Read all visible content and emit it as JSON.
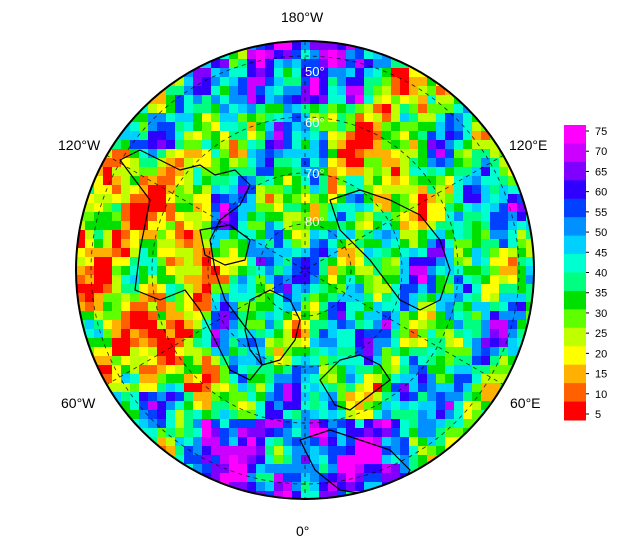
{
  "map": {
    "projection": "north-polar-stereographic",
    "longitude_labels": {
      "top": "180°W",
      "upper_left": "120°W",
      "upper_right": "120°E",
      "lower_left": "60°W",
      "lower_right": "60°E",
      "bottom": "0°"
    },
    "latitude_labels": [
      "50°",
      "60°",
      "70°",
      "80°"
    ]
  },
  "colorbar": {
    "ticks": [
      "75",
      "70",
      "65",
      "60",
      "55",
      "50",
      "45",
      "40",
      "35",
      "30",
      "25",
      "20",
      "15",
      "10",
      "5"
    ],
    "colors": [
      "#ff00ff",
      "#cc00ff",
      "#8000ff",
      "#3000ff",
      "#0040ff",
      "#0090ff",
      "#00d0ff",
      "#00ffd0",
      "#00ff80",
      "#00e000",
      "#60ff00",
      "#c0ff00",
      "#ffff00",
      "#ffb000",
      "#ff6000",
      "#ff0000"
    ]
  }
}
